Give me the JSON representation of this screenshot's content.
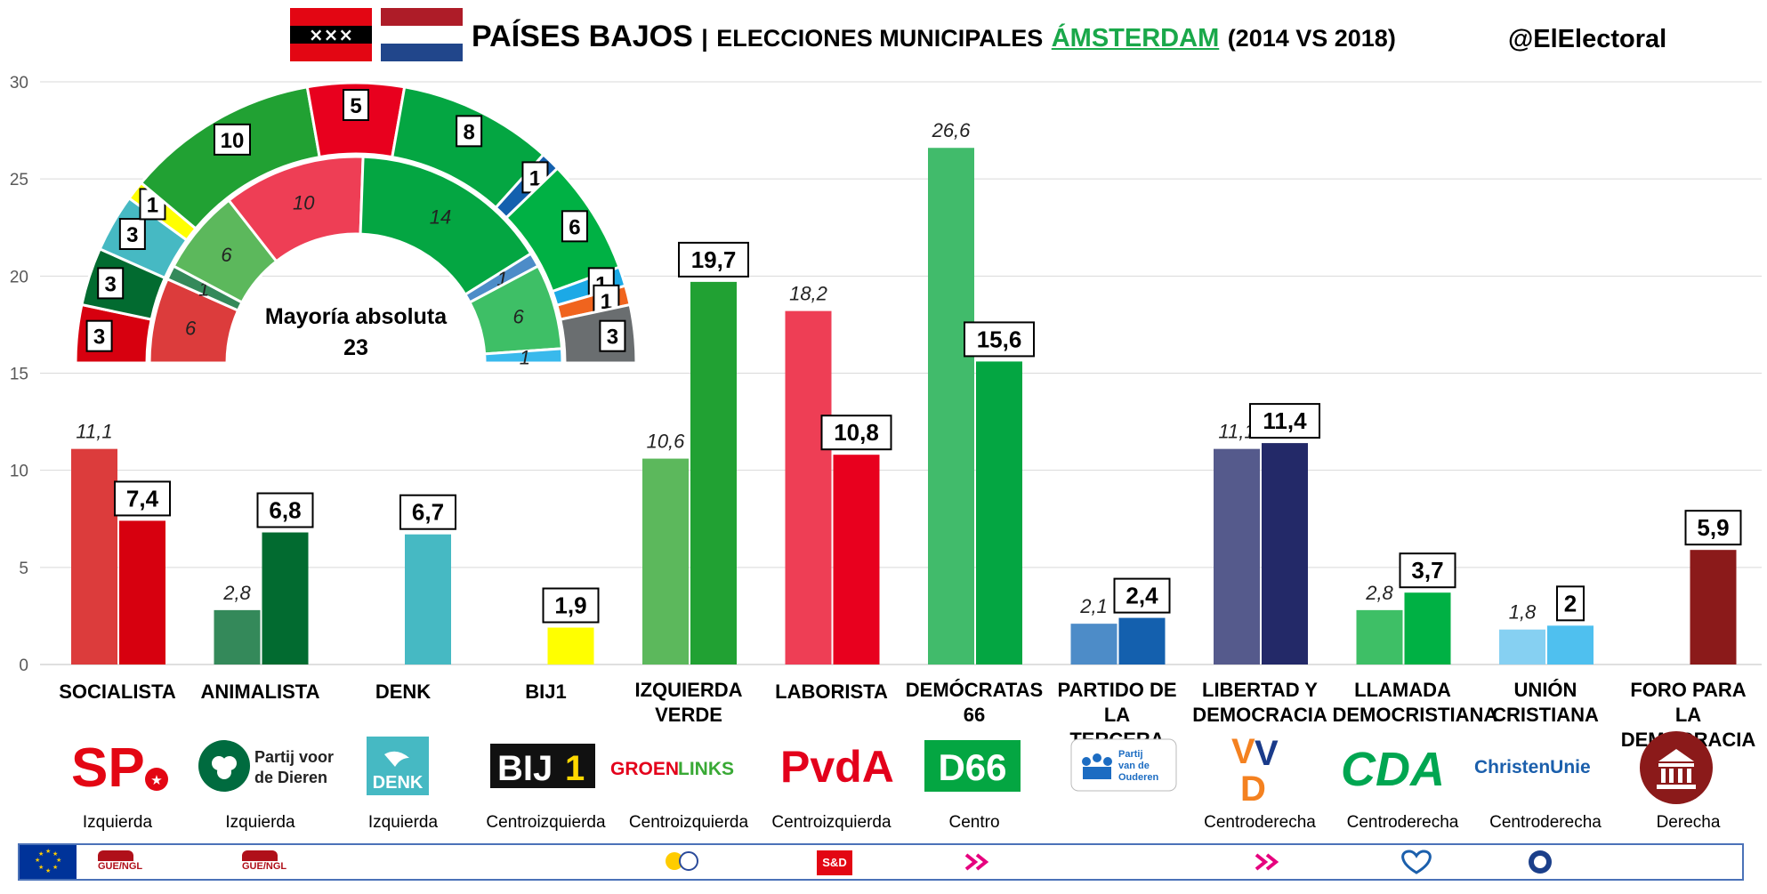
{
  "header": {
    "title_country": "PAÍSES BAJOS",
    "separator": "|",
    "title_sub": "ELECCIONES MUNICIPALES",
    "title_city": "ÁMSTERDAM",
    "title_years": "(2014 VS 2018)",
    "handle": "@ElElectoral"
  },
  "chart_data": {
    "type": "bar",
    "ylim": [
      0,
      30
    ],
    "yticks": [
      0,
      5,
      10,
      15,
      20,
      25,
      30
    ],
    "grid": true,
    "categories": [
      "SOCIALISTA",
      "ANIMALISTA",
      "DENK",
      "BIJ1",
      "IZQUIERDA VERDE",
      "LABORISTA",
      "DEMÓCRATAS 66",
      "PARTIDO DE LA TERCERA EDAD",
      "LIBERTAD Y DEMOCRACIA",
      "LLAMADA DEMOCRISTIANA",
      "UNIÓN CRISTIANA",
      "FORO PARA LA DEMOCRACIA"
    ],
    "series": [
      {
        "values": [
          11.1,
          2.8,
          null,
          null,
          10.6,
          18.2,
          26.6,
          2.1,
          11.1,
          2.8,
          1.8,
          null
        ],
        "labels": [
          "11,1",
          "2,8",
          "",
          "",
          "10,6",
          "18,2",
          "26,6",
          "2,1",
          "11,1",
          "2,8",
          "1,8",
          ""
        ]
      },
      {
        "values": [
          7.4,
          6.8,
          6.7,
          1.9,
          19.7,
          10.8,
          15.6,
          2.4,
          11.4,
          3.7,
          2,
          5.9
        ],
        "labels": [
          "7,4",
          "6,8",
          "6,7",
          "1,9",
          "19,7",
          "10,8",
          "15,6",
          "2,4",
          "11,4",
          "3,7",
          "2",
          "5,9"
        ]
      }
    ],
    "colors_2014": [
      "#dc3c3c",
      "#34895a",
      "#46b9c3",
      "#ffff00",
      "#5cb85c",
      "#ee3e55",
      "#41bb6b",
      "#4d8cc8",
      "#555a8c",
      "#3ebf66",
      "#86d0f2",
      "#8b1a1a"
    ],
    "colors_2018": [
      "#d7000f",
      "#026b30",
      "#46b9c3",
      "#ffff00",
      "#21a133",
      "#e8001e",
      "#04a642",
      "#1460ae",
      "#232968",
      "#00b144",
      "#4fc0ef",
      "#8b1a1a"
    ]
  },
  "parties": [
    {
      "name_lines": [
        "SOCIALISTA"
      ],
      "ideology": "Izquierda",
      "logo": "SP"
    },
    {
      "name_lines": [
        "ANIMALISTA"
      ],
      "ideology": "Izquierda",
      "logo": "Partij voor de Dieren"
    },
    {
      "name_lines": [
        "DENK"
      ],
      "ideology": "Izquierda",
      "logo": "DENK"
    },
    {
      "name_lines": [
        "BIJ1"
      ],
      "ideology": "Centroizquierda",
      "logo": "BIJ1"
    },
    {
      "name_lines": [
        "IZQUIERDA",
        "VERDE"
      ],
      "ideology": "Centroizquierda",
      "logo": "GROENLINKS"
    },
    {
      "name_lines": [
        "LABORISTA"
      ],
      "ideology": "Centroizquierda",
      "logo": "PvdA"
    },
    {
      "name_lines": [
        "DEMÓCRATAS",
        "66"
      ],
      "ideology": "Centro",
      "logo": "D66"
    },
    {
      "name_lines": [
        "PARTIDO DE LA",
        "TERCERA EDAD"
      ],
      "ideology": "",
      "logo": "Partij van de Ouderen"
    },
    {
      "name_lines": [
        "LIBERTAD Y",
        "DEMOCRACIA"
      ],
      "ideology": "Centroderecha",
      "logo": "VVD"
    },
    {
      "name_lines": [
        "LLAMADA",
        "DEMOCRISTIANA"
      ],
      "ideology": "Centroderecha",
      "logo": "CDA"
    },
    {
      "name_lines": [
        "UNIÓN",
        "CRISTIANA"
      ],
      "ideology": "Centroderecha",
      "logo": "ChristenUnie"
    },
    {
      "name_lines": [
        "FORO PARA LA",
        "DEMOCRACIA"
      ],
      "ideology": "Derecha",
      "logo": "forum-temple-icon"
    }
  ],
  "seats": {
    "majority_label": "Mayoría absoluta",
    "majority_value": "23",
    "outer_2018": [
      {
        "seats": 3,
        "color": "#d7000f"
      },
      {
        "seats": 3,
        "color": "#026b30"
      },
      {
        "seats": 3,
        "color": "#46b9c3"
      },
      {
        "seats": 1,
        "color": "#ffff00"
      },
      {
        "seats": 10,
        "color": "#21a133"
      },
      {
        "seats": 5,
        "color": "#e8001e"
      },
      {
        "seats": 8,
        "color": "#04a642"
      },
      {
        "seats": 1,
        "color": "#1460ae"
      },
      {
        "seats": 6,
        "color": "#00b144"
      },
      {
        "seats": 1,
        "color": "#1ca9e6"
      },
      {
        "seats": 1,
        "color": "#f0641e"
      },
      {
        "seats": 3,
        "color": "#6a6e70"
      }
    ],
    "inner_2014": [
      {
        "seats": 6,
        "color": "#dc3c3c"
      },
      {
        "seats": 1,
        "color": "#34895a"
      },
      {
        "seats": 6,
        "color": "#5cb85c"
      },
      {
        "seats": 10,
        "color": "#ee3e55"
      },
      {
        "seats": 14,
        "color": "#04a642"
      },
      {
        "seats": 1,
        "color": "#4d8cc8"
      },
      {
        "seats": 6,
        "color": "#3ebf66"
      },
      {
        "seats": 1,
        "color": "#39b9ec"
      }
    ]
  },
  "eu_bar": {
    "items": [
      "GUE/NGL",
      "GUE/NGL",
      "S&D"
    ]
  }
}
